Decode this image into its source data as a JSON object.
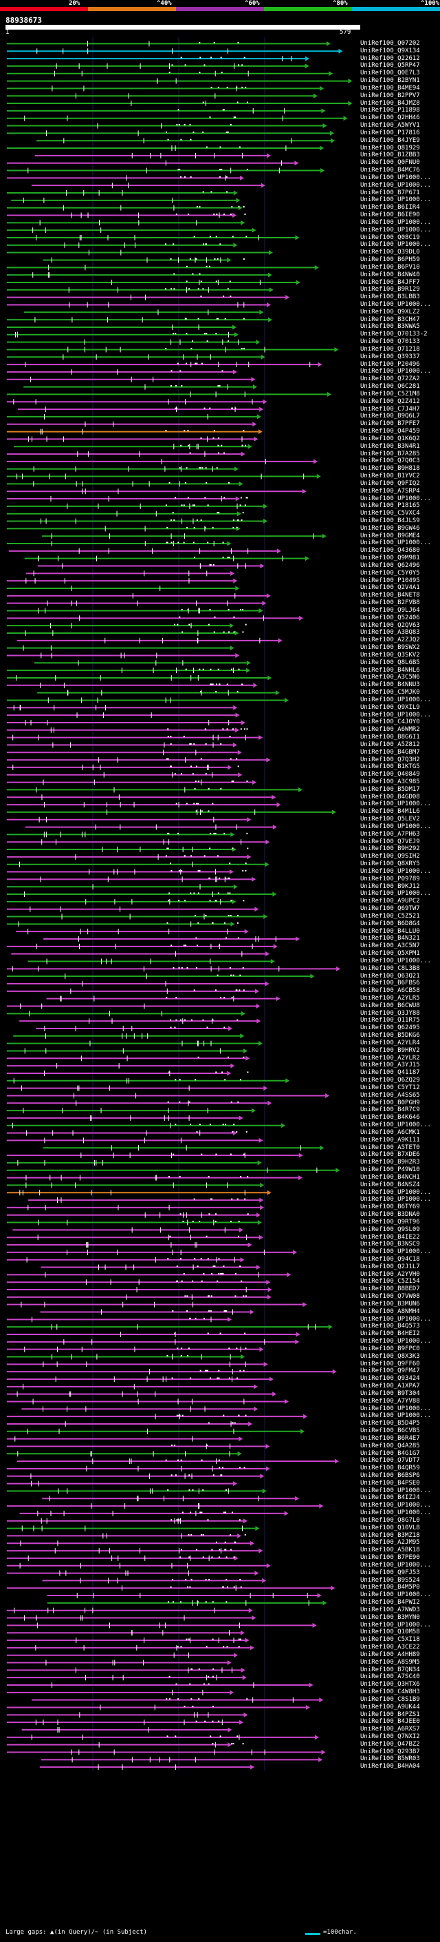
{
  "legend": {
    "labels": [
      "20%",
      "^40%",
      "^60%",
      "^80%",
      "^100%"
    ],
    "colors": [
      "#e8001c",
      "#e07818",
      "#9b2fa8",
      "#22b81c",
      "#00b4d8"
    ]
  },
  "query": {
    "id": "88938673",
    "start": "1",
    "end": "579"
  },
  "hit_colors": {
    "pink": "#cc44cc",
    "green": "#22aa22",
    "cyan": "#00bcd4",
    "orange": "#e08020"
  },
  "hits": [
    {
      "label": "UniRef100_Q07202",
      "color": "green"
    },
    {
      "label": "UniRef100_Q9X134",
      "color": "cyan"
    },
    {
      "label": "UniRef100_Q22612",
      "color": "cyan"
    },
    {
      "label": "UniRef100_Q5RP47",
      "color": "green"
    },
    {
      "label": "UniRef100_Q0E7L3",
      "color": "green"
    },
    {
      "label": "UniRef100_B2BYN1",
      "color": "green"
    },
    {
      "label": "UniRef100_B4ME94",
      "color": "green"
    },
    {
      "label": "UniRef100_B2PPV7",
      "color": "green"
    },
    {
      "label": "UniRef100_B4JMZ8",
      "color": "green"
    },
    {
      "label": "UniRef100_P11898",
      "color": "green"
    },
    {
      "label": "UniRef100_Q2HH46",
      "color": "green"
    },
    {
      "label": "UniRef100_A5WYV1",
      "color": "green"
    },
    {
      "label": "UniRef100_P17816",
      "color": "green"
    },
    {
      "label": "UniRef100_B4JYE9",
      "color": "green"
    },
    {
      "label": "UniRef100_Q81929",
      "color": "green"
    },
    {
      "label": "UniRef100_B1ZBB3",
      "color": "pink"
    },
    {
      "label": "UniRef100_Q0FNU0",
      "color": "pink"
    },
    {
      "label": "UniRef100_B4MC76",
      "color": "green"
    },
    {
      "label": "UniRef100_UP1000...",
      "color": "pink"
    },
    {
      "label": "UniRef100_UP1000...",
      "color": "pink"
    },
    {
      "label": "UniRef100_B7P671",
      "color": "green"
    },
    {
      "label": "UniRef100_UP1000...",
      "color": "green"
    },
    {
      "label": "UniRef100_B6IIR4",
      "color": "green"
    },
    {
      "label": "UniRef100_B6IE90",
      "color": "pink"
    },
    {
      "label": "UniRef100_UP1000...",
      "color": "green"
    },
    {
      "label": "UniRef100_UP1000...",
      "color": "green"
    },
    {
      "label": "UniRef100_Q08C19",
      "color": "green"
    },
    {
      "label": "UniRef100_UP1000...",
      "color": "green"
    },
    {
      "label": "UniRef100_Q39DL0",
      "color": "green"
    },
    {
      "label": "UniRef100_B6PH59",
      "color": "green"
    },
    {
      "label": "UniRef100_B6PV10",
      "color": "green"
    },
    {
      "label": "UniRef100_B4NW40",
      "color": "green"
    },
    {
      "label": "UniRef100_B4JFF7",
      "color": "green"
    },
    {
      "label": "UniRef100_B9R129",
      "color": "green"
    },
    {
      "label": "UniRef100_B3LBB3",
      "color": "pink"
    },
    {
      "label": "UniRef100_UP1000...",
      "color": "pink"
    },
    {
      "label": "UniRef100_Q9XLZ2",
      "color": "green"
    },
    {
      "label": "UniRef100_B3CH47",
      "color": "green"
    },
    {
      "label": "UniRef100_B3NWA5",
      "color": "green"
    },
    {
      "label": "UniRef100_Q70133-2",
      "color": "green"
    },
    {
      "label": "UniRef100_Q70133",
      "color": "green"
    },
    {
      "label": "UniRef100_Q71218",
      "color": "green"
    },
    {
      "label": "UniRef100_Q39337",
      "color": "green"
    },
    {
      "label": "UniRef100_P20496",
      "color": "pink"
    },
    {
      "label": "UniRef100_UP1000...",
      "color": "pink"
    },
    {
      "label": "UniRef100_Q72ZA2",
      "color": "pink"
    },
    {
      "label": "UniRef100_Q6C281",
      "color": "green"
    },
    {
      "label": "UniRef100_C5Z1M8",
      "color": "green"
    },
    {
      "label": "UniRef100_Q2Z412",
      "color": "pink"
    },
    {
      "label": "UniRef100_C7J4H7",
      "color": "pink"
    },
    {
      "label": "UniRef100_B9Q6L7",
      "color": "green"
    },
    {
      "label": "UniRef100_B7PFE7",
      "color": "pink"
    },
    {
      "label": "UniRef100_Q4P459",
      "color": "orange"
    },
    {
      "label": "UniRef100_Q1K6Q2",
      "color": "pink"
    },
    {
      "label": "UniRef100_B3N4R1",
      "color": "green"
    },
    {
      "label": "UniRef100_B7A285",
      "color": "pink"
    },
    {
      "label": "UniRef100_Q7Q0C3",
      "color": "pink"
    },
    {
      "label": "UniRef100_B9H818",
      "color": "green"
    },
    {
      "label": "UniRef100_B1YVC2",
      "color": "green"
    },
    {
      "label": "UniRef100_Q9FIQ2",
      "color": "green"
    },
    {
      "label": "UniRef100_A7SRP4",
      "color": "pink"
    },
    {
      "label": "UniRef100_UP1000...",
      "color": "pink"
    },
    {
      "label": "UniRef100_P18165",
      "color": "green"
    },
    {
      "label": "UniRef100_C5VXC4",
      "color": "green"
    },
    {
      "label": "UniRef100_B4JLS9",
      "color": "green"
    },
    {
      "label": "UniRef100_B9GW46",
      "color": "green"
    },
    {
      "label": "UniRef100_B9GME4",
      "color": "green"
    },
    {
      "label": "UniRef100_UP1000...",
      "color": "green"
    },
    {
      "label": "UniRef100_Q43680",
      "color": "pink"
    },
    {
      "label": "UniRef100_Q9M981",
      "color": "green"
    },
    {
      "label": "UniRef100_Q62496",
      "color": "pink"
    },
    {
      "label": "UniRef100_C5Y0Y5",
      "color": "pink"
    },
    {
      "label": "UniRef100_P10495",
      "color": "pink"
    },
    {
      "label": "UniRef100_Q2V4A1",
      "color": "green"
    },
    {
      "label": "UniRef100_B4NET8",
      "color": "pink"
    },
    {
      "label": "UniRef100_B2FVB8",
      "color": "pink"
    },
    {
      "label": "UniRef100_Q9LJ64",
      "color": "green"
    },
    {
      "label": "UniRef100_Q52406",
      "color": "pink"
    },
    {
      "label": "UniRef100_Q2QV63",
      "color": "green"
    },
    {
      "label": "UniRef100_A3BQ83",
      "color": "green"
    },
    {
      "label": "UniRef100_A2ZJQ2",
      "color": "pink"
    },
    {
      "label": "UniRef100_B9SWX2",
      "color": "green"
    },
    {
      "label": "UniRef100_Q3SKV2",
      "color": "pink"
    },
    {
      "label": "UniRef100_Q8L6B5",
      "color": "green"
    },
    {
      "label": "UniRef100_B4NHL6",
      "color": "green"
    },
    {
      "label": "UniRef100_A3C5N6",
      "color": "green"
    },
    {
      "label": "UniRef100_B4NNU3",
      "color": "pink"
    },
    {
      "label": "UniRef100_C5MJK0",
      "color": "green"
    },
    {
      "label": "UniRef100_UP1000...",
      "color": "green"
    },
    {
      "label": "UniRef100_Q9XIL9",
      "color": "pink"
    },
    {
      "label": "UniRef100_UP1000...",
      "color": "pink"
    },
    {
      "label": "UniRef100_C4JOY0",
      "color": "pink"
    },
    {
      "label": "UniRef100_A6WMR2",
      "color": "pink"
    },
    {
      "label": "UniRef100_B8G6I1",
      "color": "pink"
    },
    {
      "label": "UniRef100_A5Z812",
      "color": "pink"
    },
    {
      "label": "UniRef100_B4GBM7",
      "color": "pink"
    },
    {
      "label": "UniRef100_Q7Q3H2",
      "color": "pink"
    },
    {
      "label": "UniRef100_B1KTG5",
      "color": "pink"
    },
    {
      "label": "UniRef100_Q40849",
      "color": "pink"
    },
    {
      "label": "UniRef100_A3C985",
      "color": "pink"
    },
    {
      "label": "UniRef100_B5DM17",
      "color": "green"
    },
    {
      "label": "UniRef100_B4GD08",
      "color": "pink"
    },
    {
      "label": "UniRef100_UP1000...",
      "color": "pink"
    },
    {
      "label": "UniRef100_B4M1L6",
      "color": "green"
    },
    {
      "label": "UniRef100_Q5LEV2",
      "color": "pink"
    },
    {
      "label": "UniRef100_UP1000...",
      "color": "pink"
    },
    {
      "label": "UniRef100_A7PH63",
      "color": "green"
    },
    {
      "label": "UniRef100_Q7VEJ9",
      "color": "pink"
    },
    {
      "label": "UniRef100_B9H292",
      "color": "green"
    },
    {
      "label": "UniRef100_Q9SIH2",
      "color": "pink"
    },
    {
      "label": "UniRef100_Q8XRY5",
      "color": "green"
    },
    {
      "label": "UniRef100_UP1000...",
      "color": "pink"
    },
    {
      "label": "UniRef100_P09789",
      "color": "pink"
    },
    {
      "label": "UniRef100_B9KJ12",
      "color": "green"
    },
    {
      "label": "UniRef100_UP1000...",
      "color": "green"
    },
    {
      "label": "UniRef100_A9UPC2",
      "color": "green"
    },
    {
      "label": "UniRef100_Q69TW7",
      "color": "pink"
    },
    {
      "label": "UniRef100_C5Z521",
      "color": "green"
    },
    {
      "label": "UniRef100_B6D8G4",
      "color": "green"
    },
    {
      "label": "UniRef100_B4LLU0",
      "color": "pink"
    },
    {
      "label": "UniRef100_B4N321",
      "color": "pink"
    },
    {
      "label": "UniRef100_A3C5N7",
      "color": "pink"
    },
    {
      "label": "UniRef100_Q5XPM1",
      "color": "pink"
    },
    {
      "label": "UniRef100_UP1000...",
      "color": "green"
    },
    {
      "label": "UniRef100_C8L3B8",
      "color": "pink"
    },
    {
      "label": "UniRef100_Q63Q21",
      "color": "green"
    },
    {
      "label": "UniRef100_B6FBS6",
      "color": "pink"
    },
    {
      "label": "UniRef100_A6CB58",
      "color": "pink"
    },
    {
      "label": "UniRef100_A2YLR5",
      "color": "pink"
    },
    {
      "label": "UniRef100_B6CWU8",
      "color": "pink"
    },
    {
      "label": "UniRef100_Q3JY88",
      "color": "green"
    },
    {
      "label": "UniRef100_Q11R75",
      "color": "pink"
    },
    {
      "label": "UniRef100_Q62495",
      "color": "pink"
    },
    {
      "label": "UniRef100_B5DKG6",
      "color": "green"
    },
    {
      "label": "UniRef100_A2YLR4",
      "color": "green"
    },
    {
      "label": "UniRef100_B9HRV2",
      "color": "green"
    },
    {
      "label": "UniRef100_A2YLR2",
      "color": "pink"
    },
    {
      "label": "UniRef100_A3YJ15",
      "color": "pink"
    },
    {
      "label": "UniRef100_Q41187",
      "color": "pink"
    },
    {
      "label": "UniRef100_Q6ZQ29",
      "color": "green"
    },
    {
      "label": "UniRef100_C5YT12",
      "color": "pink"
    },
    {
      "label": "UniRef100_A4SS65",
      "color": "pink"
    },
    {
      "label": "UniRef100_B0PGH9",
      "color": "pink"
    },
    {
      "label": "UniRef100_B4R7C9",
      "color": "green"
    },
    {
      "label": "UniRef100_B4K646",
      "color": "pink"
    },
    {
      "label": "UniRef100_UP1000...",
      "color": "green"
    },
    {
      "label": "UniRef100_A6CMK1",
      "color": "pink"
    },
    {
      "label": "UniRef100_A9K111",
      "color": "pink"
    },
    {
      "label": "UniRef100_A5TET0",
      "color": "green"
    },
    {
      "label": "UniRef100_B7XDE6",
      "color": "pink"
    },
    {
      "label": "UniRef100_B9H2R3",
      "color": "green"
    },
    {
      "label": "UniRef100_P49W10",
      "color": "green"
    },
    {
      "label": "UniRef100_B4NCH1",
      "color": "pink"
    },
    {
      "label": "UniRef100_B4NSZ4",
      "color": "green"
    },
    {
      "label": "UniRef100_UP1000...",
      "color": "orange"
    },
    {
      "label": "UniRef100_UP1000...",
      "color": "pink"
    },
    {
      "label": "UniRef100_B6TY69",
      "color": "pink"
    },
    {
      "label": "UniRef100_B3DNA0",
      "color": "pink"
    },
    {
      "label": "UniRef100_Q9RT96",
      "color": "green"
    },
    {
      "label": "UniRef100_Q9SL09",
      "color": "pink"
    },
    {
      "label": "UniRef100_B4IE22",
      "color": "pink"
    },
    {
      "label": "UniRef100_B3NSC9",
      "color": "pink"
    },
    {
      "label": "UniRef100_UP1000...",
      "color": "pink"
    },
    {
      "label": "UniRef100_Q94C18",
      "color": "pink"
    },
    {
      "label": "UniRef100_Q2J1L7",
      "color": "pink"
    },
    {
      "label": "UniRef100_A2YVH0",
      "color": "pink"
    },
    {
      "label": "UniRef100_C5Z154",
      "color": "pink"
    },
    {
      "label": "UniRef100_B8BED7",
      "color": "pink"
    },
    {
      "label": "UniRef100_Q7VW08",
      "color": "pink"
    },
    {
      "label": "UniRef100_B3MUN6",
      "color": "pink"
    },
    {
      "label": "UniRef100_A8NMH4",
      "color": "pink"
    },
    {
      "label": "UniRef100_UP1000...",
      "color": "pink"
    },
    {
      "label": "UniRef100_B4Q573",
      "color": "green"
    },
    {
      "label": "UniRef100_B4HEI2",
      "color": "pink"
    },
    {
      "label": "UniRef100_UP1000...",
      "color": "pink"
    },
    {
      "label": "UniRef100_B9FPC0",
      "color": "pink"
    },
    {
      "label": "UniRef100_Q8X3K3",
      "color": "green"
    },
    {
      "label": "UniRef100_Q9FF60",
      "color": "pink"
    },
    {
      "label": "UniRef100_Q9FM47",
      "color": "pink"
    },
    {
      "label": "UniRef100_Q93424",
      "color": "pink"
    },
    {
      "label": "UniRef100_A1XPA7",
      "color": "pink"
    },
    {
      "label": "UniRef100_B9T304",
      "color": "pink"
    },
    {
      "label": "UniRef100_A7YV88",
      "color": "pink"
    },
    {
      "label": "UniRef100_UP1000...",
      "color": "pink"
    },
    {
      "label": "UniRef100_UP1000...",
      "color": "pink"
    },
    {
      "label": "UniRef100_B5D4P5",
      "color": "pink"
    },
    {
      "label": "UniRef100_B6CVB5",
      "color": "green"
    },
    {
      "label": "UniRef100_B6R4E7",
      "color": "pink"
    },
    {
      "label": "UniRef100_Q4A285",
      "color": "pink"
    },
    {
      "label": "UniRef100_B4G1G7",
      "color": "green"
    },
    {
      "label": "UniRef100_Q7VDT7",
      "color": "pink"
    },
    {
      "label": "UniRef100_B4QR59",
      "color": "pink"
    },
    {
      "label": "UniRef100_B6BSP6",
      "color": "pink"
    },
    {
      "label": "UniRef100_B4PSE0",
      "color": "pink"
    },
    {
      "label": "UniRef100_UP1000...",
      "color": "green"
    },
    {
      "label": "UniRef100_B4IZJ4",
      "color": "pink"
    },
    {
      "label": "UniRef100_UP1000...",
      "color": "pink"
    },
    {
      "label": "UniRef100_UP1000...",
      "color": "pink"
    },
    {
      "label": "UniRef100_Q8G7L0",
      "color": "pink"
    },
    {
      "label": "UniRef100_Q10VL8",
      "color": "green"
    },
    {
      "label": "UniRef100_B3MZ18",
      "color": "pink"
    },
    {
      "label": "UniRef100_A2JM95",
      "color": "pink"
    },
    {
      "label": "UniRef100_A5BK18",
      "color": "pink"
    },
    {
      "label": "UniRef100_B7PE90",
      "color": "pink"
    },
    {
      "label": "UniRef100_UP1000...",
      "color": "pink"
    },
    {
      "label": "UniRef100_Q9FJ53",
      "color": "pink"
    },
    {
      "label": "UniRef100_B9S524",
      "color": "pink"
    },
    {
      "label": "UniRef100_B4M5P0",
      "color": "pink"
    },
    {
      "label": "UniRef100_UP1000...",
      "color": "pink"
    },
    {
      "label": "UniRef100_B4PWI2",
      "color": "green"
    },
    {
      "label": "UniRef100_A7NWD3",
      "color": "pink"
    },
    {
      "label": "UniRef100_B3MYN0",
      "color": "pink"
    },
    {
      "label": "UniRef100_UP1000...",
      "color": "pink"
    },
    {
      "label": "UniRef100_Q10M58",
      "color": "pink"
    },
    {
      "label": "UniRef100_C5XI18",
      "color": "pink"
    },
    {
      "label": "UniRef100_A3CE22",
      "color": "pink"
    },
    {
      "label": "UniRef100_A4HH89",
      "color": "pink"
    },
    {
      "label": "UniRef100_A8S9M5",
      "color": "pink"
    },
    {
      "label": "UniRef100_B7QN34",
      "color": "pink"
    },
    {
      "label": "UniRef100_A7SC40",
      "color": "pink"
    },
    {
      "label": "UniRef100_Q3HTX6",
      "color": "pink"
    },
    {
      "label": "UniRef100_C4W8H3",
      "color": "pink"
    },
    {
      "label": "UniRef100_C8S1B9",
      "color": "pink"
    },
    {
      "label": "UniRef100_A9UK44",
      "color": "pink"
    },
    {
      "label": "UniRef100_B4PZS1",
      "color": "pink"
    },
    {
      "label": "UniRef100_B4JEE0",
      "color": "pink"
    },
    {
      "label": "UniRef100_A6RXS7",
      "color": "pink"
    },
    {
      "label": "UniRef100_Q7NXI2",
      "color": "pink"
    },
    {
      "label": "UniRef100_Q47BZ2",
      "color": "pink"
    },
    {
      "label": "UniRef100_Q293B7",
      "color": "pink"
    },
    {
      "label": "UniRef100_B5WR03",
      "color": "pink"
    },
    {
      "label": "UniRef100_B4HA04",
      "color": "pink"
    }
  ],
  "footer": {
    "large_gaps": "Large gaps: ▲(in Query)/~ (in Subject)",
    "scale": "=100char."
  }
}
